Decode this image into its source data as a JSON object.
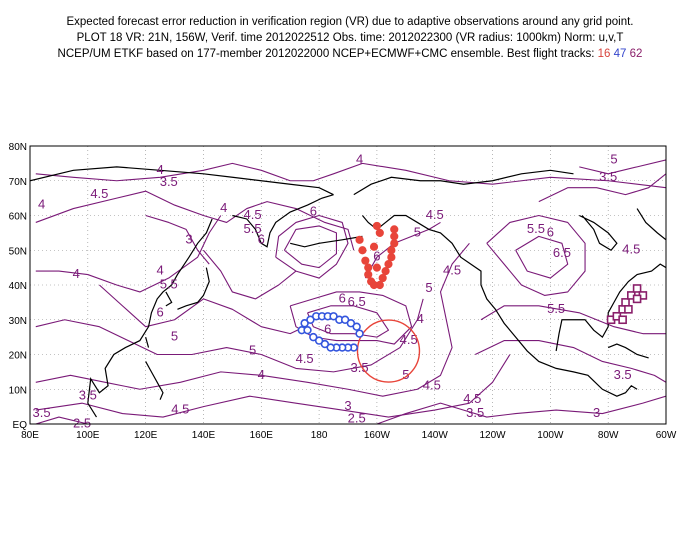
{
  "title": {
    "line1": "Expected forecast error reduction in verification region (VR) due to adaptive observations around any grid point.",
    "line2": "PLOT 18 VR: 21N, 156W, Verif. time 2012022512 Obs. time: 2012022300 (VR radius: 1000km) Norm: u,v,T",
    "line3_prefix": "NCEP/UM ETKF based on 177-member 2012022000 NCEP+ECMWF+CMC ensemble. Best flight tracks:",
    "track_a": "16",
    "track_b": "47",
    "track_c": "62"
  },
  "colors": {
    "contour": "#7a1a78",
    "track_16": "#e8453a",
    "track_47": "#3355dd",
    "track_62": "#8a1f6a",
    "verification_circle": "#e8453a",
    "coast": "#000000",
    "grid": "#888888"
  },
  "map": {
    "lon_labels": [
      "80E",
      "100E",
      "120E",
      "140E",
      "160E",
      "180",
      "160W",
      "140W",
      "120W",
      "100W",
      "80W",
      "60W"
    ],
    "lat_labels": [
      "EQ",
      "10N",
      "20N",
      "30N",
      "40N",
      "50N",
      "60N",
      "70N",
      "80N"
    ],
    "contour_labels": [
      {
        "text": "4",
        "lon": 125,
        "lat": 72
      },
      {
        "text": "3.5",
        "lon": 128,
        "lat": 68.5
      },
      {
        "text": "4.5",
        "lon": 104,
        "lat": 65
      },
      {
        "text": "4",
        "lon": 84,
        "lat": 62
      },
      {
        "text": "4",
        "lon": 147,
        "lat": 61
      },
      {
        "text": "3",
        "lon": 135,
        "lat": 52
      },
      {
        "text": "4.5",
        "lon": 157,
        "lat": 59
      },
      {
        "text": "5.5",
        "lon": 157,
        "lat": 55
      },
      {
        "text": "6",
        "lon": 160,
        "lat": 52
      },
      {
        "text": "4",
        "lon": 96,
        "lat": 42
      },
      {
        "text": "4",
        "lon": 125,
        "lat": 43
      },
      {
        "text": "5.5",
        "lon": 128,
        "lat": 39
      },
      {
        "text": "6",
        "lon": 178,
        "lat": 60
      },
      {
        "text": "4",
        "lon": 194,
        "lat": 75
      },
      {
        "text": "4.5",
        "lon": 220,
        "lat": 59
      },
      {
        "text": "5",
        "lon": 214,
        "lat": 54
      },
      {
        "text": "6",
        "lon": 200,
        "lat": 47
      },
      {
        "text": "4.5",
        "lon": 226,
        "lat": 43
      },
      {
        "text": "5",
        "lon": 218,
        "lat": 38
      },
      {
        "text": "4",
        "lon": 215,
        "lat": 29
      },
      {
        "text": "4.5",
        "lon": 211,
        "lat": 23
      },
      {
        "text": "5",
        "lon": 210,
        "lat": 13
      },
      {
        "text": "4.5",
        "lon": 219,
        "lat": 10
      },
      {
        "text": "6",
        "lon": 188,
        "lat": 35
      },
      {
        "text": "6.5",
        "lon": 193,
        "lat": 34
      },
      {
        "text": "6",
        "lon": 183,
        "lat": 26
      },
      {
        "text": "5",
        "lon": 157,
        "lat": 20
      },
      {
        "text": "5",
        "lon": 130,
        "lat": 24
      },
      {
        "text": "6",
        "lon": 125,
        "lat": 31
      },
      {
        "text": "4",
        "lon": 160,
        "lat": 13
      },
      {
        "text": "4.5",
        "lon": 175,
        "lat": 17.5
      },
      {
        "text": "3.5",
        "lon": 194,
        "lat": 15
      },
      {
        "text": "3",
        "lon": 190,
        "lat": 4
      },
      {
        "text": "2.5",
        "lon": 193,
        "lat": 0.5
      },
      {
        "text": "4.5",
        "lon": 132,
        "lat": 3
      },
      {
        "text": "3.5",
        "lon": 100,
        "lat": 7
      },
      {
        "text": "3.5",
        "lon": 84,
        "lat": 2
      },
      {
        "text": "2.5",
        "lon": 98,
        "lat": -1
      },
      {
        "text": "4.5",
        "lon": 233,
        "lat": 6
      },
      {
        "text": "3.5",
        "lon": 234,
        "lat": 2
      },
      {
        "text": "3",
        "lon": 276,
        "lat": 2
      },
      {
        "text": "3.5",
        "lon": 285,
        "lat": 13
      },
      {
        "text": "5.5",
        "lon": 262,
        "lat": 32
      },
      {
        "text": "6.5",
        "lon": 264,
        "lat": 48
      },
      {
        "text": "5.5",
        "lon": 255,
        "lat": 55
      },
      {
        "text": "6",
        "lon": 260,
        "lat": 54
      },
      {
        "text": "4.5",
        "lon": 288,
        "lat": 49
      },
      {
        "text": "3.5",
        "lon": 280,
        "lat": 70
      },
      {
        "text": "5",
        "lon": 282,
        "lat": 75
      }
    ],
    "track_16_points": [
      [
        194,
        53
      ],
      [
        195,
        50
      ],
      [
        196,
        47
      ],
      [
        197,
        45
      ],
      [
        197,
        43
      ],
      [
        198,
        41
      ],
      [
        199,
        40
      ],
      [
        201,
        40
      ],
      [
        202,
        42
      ],
      [
        203,
        44
      ],
      [
        204,
        46
      ],
      [
        205,
        48
      ],
      [
        205,
        50
      ],
      [
        206,
        52
      ],
      [
        206,
        54
      ],
      [
        206,
        56
      ],
      [
        201,
        55
      ],
      [
        200,
        57
      ],
      [
        199,
        51
      ],
      [
        200,
        45
      ]
    ],
    "track_47_points": [
      [
        174,
        27
      ],
      [
        175,
        29
      ],
      [
        177,
        30
      ],
      [
        179,
        31
      ],
      [
        181,
        31
      ],
      [
        183,
        31
      ],
      [
        185,
        31
      ],
      [
        187,
        30
      ],
      [
        189,
        30
      ],
      [
        191,
        29
      ],
      [
        193,
        28
      ],
      [
        194,
        26
      ],
      [
        192,
        22
      ],
      [
        190,
        22
      ],
      [
        188,
        22
      ],
      [
        186,
        22
      ],
      [
        184,
        22
      ],
      [
        182,
        23
      ],
      [
        180,
        24
      ],
      [
        178,
        25
      ],
      [
        176,
        27
      ]
    ],
    "track_62_points": [
      [
        281,
        30
      ],
      [
        283,
        31
      ],
      [
        285,
        33
      ],
      [
        286,
        35
      ],
      [
        288,
        37
      ],
      [
        290,
        39
      ],
      [
        292,
        37
      ],
      [
        290,
        36
      ],
      [
        287,
        33
      ],
      [
        285,
        30
      ]
    ],
    "verification_center": {
      "lon": 204,
      "lat": 21
    }
  }
}
